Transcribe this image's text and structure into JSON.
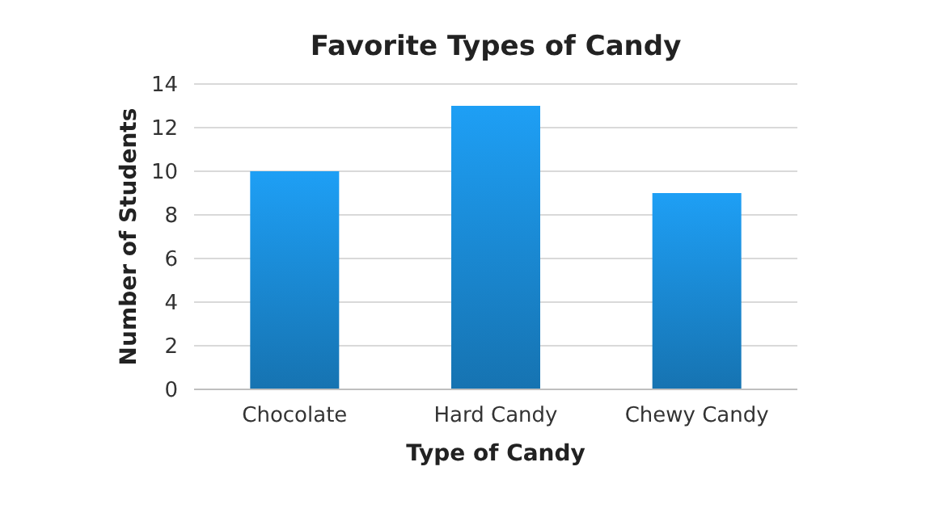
{
  "chart_data": {
    "type": "bar",
    "title": "Favorite Types of Candy",
    "xlabel": "Type of Candy",
    "ylabel": "Number of Students",
    "categories": [
      "Chocolate",
      "Hard Candy",
      "Chewy Candy"
    ],
    "values": [
      10,
      13,
      9
    ],
    "color": "#1a8ad4",
    "ylim": [
      0,
      14
    ],
    "yticks": [
      0,
      2,
      4,
      6,
      8,
      10,
      12,
      14
    ],
    "grid": "y"
  }
}
